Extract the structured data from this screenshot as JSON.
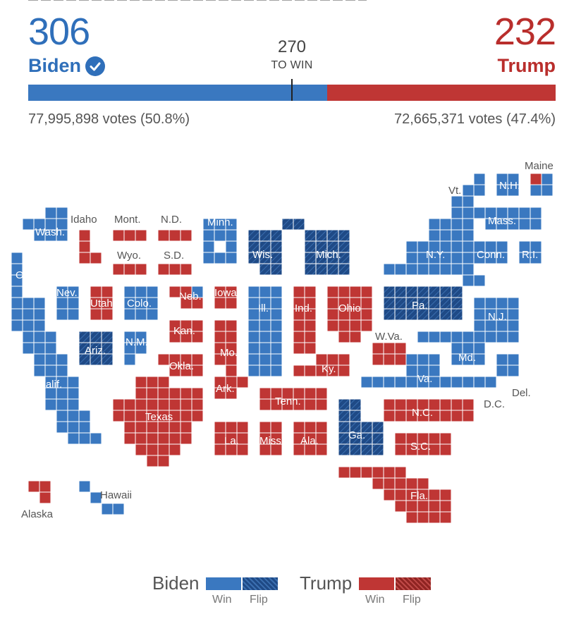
{
  "header": {
    "biden_ev": "306",
    "biden_label": "Biden",
    "trump_ev": "232",
    "trump_label": "Trump",
    "to_win_number": "270",
    "to_win_label": "TO WIN",
    "biden_votes": "77,995,898 votes (50.8%)",
    "trump_votes": "72,665,371 votes (47.4%)",
    "biden_bar_share": 0.567
  },
  "colors": {
    "biden": "#3a78c0",
    "trump": "#bf3634",
    "biden_flip": "#1f4a86",
    "trump_flip": "#8f2422"
  },
  "legend": {
    "biden_label": "Biden",
    "trump_label": "Trump",
    "win_label": "Win",
    "flip_label": "Flip"
  },
  "states": [
    {
      "label": "Wash.",
      "winner": "biden",
      "flip": false
    },
    {
      "label": "Ore.",
      "winner": "biden",
      "flip": false
    },
    {
      "label": "Calif.",
      "winner": "biden",
      "flip": false
    },
    {
      "label": "Nev.",
      "winner": "biden",
      "flip": false
    },
    {
      "label": "Idaho",
      "winner": "trump",
      "flip": false
    },
    {
      "label": "Mont.",
      "winner": "trump",
      "flip": false
    },
    {
      "label": "Wyo.",
      "winner": "trump",
      "flip": false
    },
    {
      "label": "Utah",
      "winner": "trump",
      "flip": false
    },
    {
      "label": "Colo.",
      "winner": "biden",
      "flip": false
    },
    {
      "label": "Ariz.",
      "winner": "biden",
      "flip": true
    },
    {
      "label": "N.M.",
      "winner": "biden",
      "flip": false
    },
    {
      "label": "N.D.",
      "winner": "trump",
      "flip": false
    },
    {
      "label": "S.D.",
      "winner": "trump",
      "flip": false
    },
    {
      "label": "Neb.",
      "winner": "trump",
      "flip": false
    },
    {
      "label": "Kan.",
      "winner": "trump",
      "flip": false
    },
    {
      "label": "Okla.",
      "winner": "trump",
      "flip": false
    },
    {
      "label": "Texas",
      "winner": "trump",
      "flip": false
    },
    {
      "label": "Minn.",
      "winner": "biden",
      "flip": false
    },
    {
      "label": "Iowa",
      "winner": "trump",
      "flip": false
    },
    {
      "label": "Mo.",
      "winner": "trump",
      "flip": false
    },
    {
      "label": "Ark.",
      "winner": "trump",
      "flip": false
    },
    {
      "label": "La.",
      "winner": "trump",
      "flip": false
    },
    {
      "label": "Wis.",
      "winner": "biden",
      "flip": true
    },
    {
      "label": "Ill.",
      "winner": "biden",
      "flip": false
    },
    {
      "label": "Mich.",
      "winner": "biden",
      "flip": true
    },
    {
      "label": "Ind.",
      "winner": "trump",
      "flip": false
    },
    {
      "label": "Ohio",
      "winner": "trump",
      "flip": false
    },
    {
      "label": "Ky.",
      "winner": "trump",
      "flip": false
    },
    {
      "label": "Tenn.",
      "winner": "trump",
      "flip": false
    },
    {
      "label": "Miss.",
      "winner": "trump",
      "flip": false
    },
    {
      "label": "Ala.",
      "winner": "trump",
      "flip": false
    },
    {
      "label": "Ga.",
      "winner": "biden",
      "flip": true
    },
    {
      "label": "Fla.",
      "winner": "trump",
      "flip": false
    },
    {
      "label": "S.C.",
      "winner": "trump",
      "flip": false
    },
    {
      "label": "N.C.",
      "winner": "trump",
      "flip": false
    },
    {
      "label": "Va.",
      "winner": "biden",
      "flip": false
    },
    {
      "label": "W.Va.",
      "winner": "trump",
      "flip": false
    },
    {
      "label": "Pa.",
      "winner": "biden",
      "flip": true
    },
    {
      "label": "N.Y.",
      "winner": "biden",
      "flip": false
    },
    {
      "label": "N.J.",
      "winner": "biden",
      "flip": false
    },
    {
      "label": "Md.",
      "winner": "biden",
      "flip": false
    },
    {
      "label": "Del.",
      "winner": "biden",
      "flip": false
    },
    {
      "label": "D.C.",
      "winner": "biden",
      "flip": false
    },
    {
      "label": "Conn.",
      "winner": "biden",
      "flip": false
    },
    {
      "label": "R.I.",
      "winner": "biden",
      "flip": false
    },
    {
      "label": "Mass.",
      "winner": "biden",
      "flip": false
    },
    {
      "label": "Vt.",
      "winner": "biden",
      "flip": false
    },
    {
      "label": "N.H.",
      "winner": "biden",
      "flip": false
    },
    {
      "label": "Maine",
      "winner": "biden",
      "flip": false
    },
    {
      "label": "Alaska",
      "winner": "trump",
      "flip": false
    },
    {
      "label": "Hawaii",
      "winner": "biden",
      "flip": false
    }
  ]
}
